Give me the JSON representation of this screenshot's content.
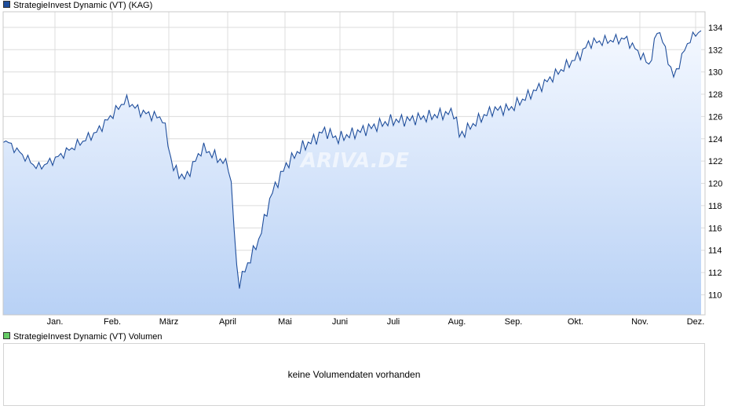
{
  "legend": {
    "price_label": "StrategieInvest Dynamic (VT) (KAG)",
    "price_color": "#1f4e9c",
    "volume_label": "StrategieInvest Dynamic (VT) Volumen",
    "volume_color": "#66cc66"
  },
  "volume_panel": {
    "message": "keine Volumendaten vorhanden"
  },
  "watermark": "ARIVA.DE",
  "chart_data": {
    "type": "area",
    "title": "",
    "xlabel": "",
    "ylabel": "",
    "x_ticks": [
      "Jan.",
      "Feb.",
      "März",
      "April",
      "Mai",
      "Juni",
      "Juli",
      "Aug.",
      "Sep.",
      "Okt.",
      "Nov.",
      "Dez."
    ],
    "y_ticks": [
      110,
      112,
      114,
      116,
      118,
      120,
      122,
      124,
      126,
      128,
      130,
      132,
      134
    ],
    "ylim": [
      108.2,
      135.4
    ],
    "grid": true,
    "line_color": "#1f4e9c",
    "series": [
      {
        "name": "StrategieInvest Dynamic (VT) (KAG)",
        "points": [
          [
            "Dez.",
            124.0
          ],
          [
            "Jan.",
            121.4
          ],
          [
            "Jan.",
            122.0
          ],
          [
            "Feb.",
            124.6
          ],
          [
            "Feb.",
            127.5
          ],
          [
            "Feb.",
            126.4
          ],
          [
            "März",
            125.8
          ],
          [
            "März",
            121.4
          ],
          [
            "März",
            120.4
          ],
          [
            "März",
            123.2
          ],
          [
            "April",
            121.5
          ],
          [
            "April",
            110.8
          ],
          [
            "April",
            115.0
          ],
          [
            "Mai",
            119.1
          ],
          [
            "Mai",
            121.6
          ],
          [
            "Mai",
            123.2
          ],
          [
            "Juni",
            124.1
          ],
          [
            "Juni",
            124.8
          ],
          [
            "Juni",
            124.0
          ],
          [
            "Juli",
            125.6
          ],
          [
            "Juli",
            125.7
          ],
          [
            "Aug.",
            126.4
          ],
          [
            "Aug.",
            124.2
          ],
          [
            "Aug.",
            125.9
          ],
          [
            "Sep.",
            126.6
          ],
          [
            "Sep.",
            126.7
          ],
          [
            "Okt.",
            128.4
          ],
          [
            "Okt.",
            131.6
          ],
          [
            "Okt.",
            132.6
          ],
          [
            "Nov.",
            133.0
          ],
          [
            "Nov.",
            130.6
          ],
          [
            "Nov.",
            134.1
          ],
          [
            "Nov.",
            129.5
          ],
          [
            "Dez.",
            132.8
          ],
          [
            "Dez.",
            134.0
          ]
        ]
      }
    ]
  }
}
